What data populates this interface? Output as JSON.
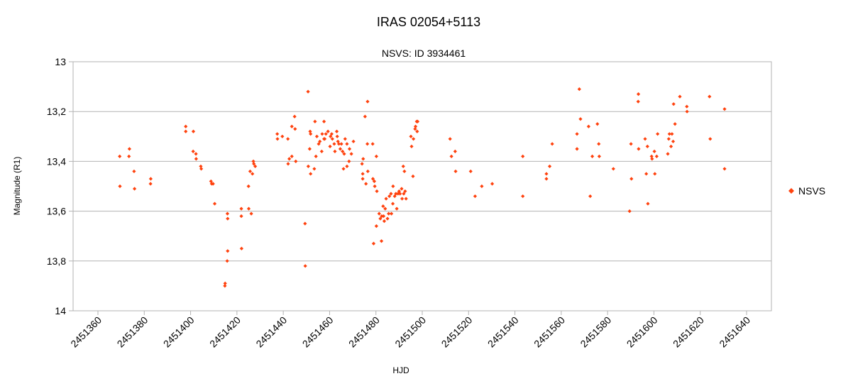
{
  "chart_data": {
    "type": "scatter",
    "title": "IRAS 02054+5113",
    "subtitle": "NSVS: ID 3934461",
    "xlabel": "HJD",
    "ylabel": "Magnitude (R1)",
    "xlim": [
      2451360,
      2451640
    ],
    "ylim": [
      13,
      14
    ],
    "y_inverted": true,
    "x_ticks": [
      "2451360",
      "2451380",
      "2451400",
      "2451420",
      "2451440",
      "2451460",
      "2451480",
      "2451500",
      "2451520",
      "2451540",
      "2451560",
      "2451580",
      "2451600",
      "2451620",
      "2451640"
    ],
    "y_ticks": [
      "13",
      "13,2",
      "13,4",
      "13,6",
      "13,8",
      "14"
    ],
    "grid": "horizontal",
    "legend": "right",
    "colors": {
      "marker": "#ff420e",
      "grid": "#b3b3b3",
      "axis": "#b3b3b3"
    },
    "series": [
      {
        "name": "NSVS",
        "marker": "diamond",
        "points": [
          [
            2451369.4,
            13.38
          ],
          [
            2451369.5,
            13.5
          ],
          [
            2451373.6,
            13.35
          ],
          [
            2451373.4,
            13.38
          ],
          [
            2451375.6,
            13.44
          ],
          [
            2451375.8,
            13.51
          ],
          [
            2451382.8,
            13.47
          ],
          [
            2451382.7,
            13.49
          ],
          [
            2451397.9,
            13.26
          ],
          [
            2451397.9,
            13.28
          ],
          [
            2451401.2,
            13.28
          ],
          [
            2451401.1,
            13.36
          ],
          [
            2451402.3,
            13.37
          ],
          [
            2451402.4,
            13.39
          ],
          [
            2451404.4,
            13.42
          ],
          [
            2451404.6,
            13.43
          ],
          [
            2451408.8,
            13.48
          ],
          [
            2451409.7,
            13.49
          ],
          [
            2451409.1,
            13.49
          ],
          [
            2451410.4,
            13.57
          ],
          [
            2451414.9,
            13.89
          ],
          [
            2451414.8,
            13.9
          ],
          [
            2451415.9,
            13.61
          ],
          [
            2451416.0,
            13.63
          ],
          [
            2451416.0,
            13.76
          ],
          [
            2451415.8,
            13.8
          ],
          [
            2451421.9,
            13.59
          ],
          [
            2451421.9,
            13.62
          ],
          [
            2451422.0,
            13.75
          ],
          [
            2451425.1,
            13.59
          ],
          [
            2451425.0,
            13.5
          ],
          [
            2451425.7,
            13.44
          ],
          [
            2451426.2,
            13.61
          ],
          [
            2451427.1,
            13.4
          ],
          [
            2451427.3,
            13.41
          ],
          [
            2451427.9,
            13.42
          ],
          [
            2451426.7,
            13.45
          ],
          [
            2451437.4,
            13.29
          ],
          [
            2451437.5,
            13.31
          ],
          [
            2451439.6,
            13.3
          ],
          [
            2451442.0,
            13.31
          ],
          [
            2451442.1,
            13.41
          ],
          [
            2451443.7,
            13.26
          ],
          [
            2451444.9,
            13.22
          ],
          [
            2451445.1,
            13.27
          ],
          [
            2451443.7,
            13.38
          ],
          [
            2451445.4,
            13.4
          ],
          [
            2451442.6,
            13.39
          ],
          [
            2451449.4,
            13.65
          ],
          [
            2451449.5,
            13.82
          ],
          [
            2451450.7,
            13.12
          ],
          [
            2451451.6,
            13.28
          ],
          [
            2451451.8,
            13.29
          ],
          [
            2451451.4,
            13.35
          ],
          [
            2451450.8,
            13.42
          ],
          [
            2451451.8,
            13.45
          ],
          [
            2451453.4,
            13.43
          ],
          [
            2451453.7,
            13.24
          ],
          [
            2451454.1,
            13.38
          ],
          [
            2451454.5,
            13.3
          ],
          [
            2451455.3,
            13.33
          ],
          [
            2451455.8,
            13.32
          ],
          [
            2451456.8,
            13.29
          ],
          [
            2451456.6,
            13.36
          ],
          [
            2451457.6,
            13.24
          ],
          [
            2451457.6,
            13.31
          ],
          [
            2451457.9,
            13.31
          ],
          [
            2451458.4,
            13.29
          ],
          [
            2451459.3,
            13.28
          ],
          [
            2451460.2,
            13.34
          ],
          [
            2451460.4,
            13.3
          ],
          [
            2451460.9,
            13.29
          ],
          [
            2451461.2,
            13.31
          ],
          [
            2451462.0,
            13.33
          ],
          [
            2451462.3,
            13.36
          ],
          [
            2451463.1,
            13.28
          ],
          [
            2451463.3,
            13.3
          ],
          [
            2451463.6,
            13.32
          ],
          [
            2451464.0,
            13.33
          ],
          [
            2451464.6,
            13.35
          ],
          [
            2451465.1,
            13.33
          ],
          [
            2451465.6,
            13.36
          ],
          [
            2451466.3,
            13.37
          ],
          [
            2451466.7,
            13.31
          ],
          [
            2451467.5,
            13.33
          ],
          [
            2451466.0,
            13.43
          ],
          [
            2451467.5,
            13.42
          ],
          [
            2451468.4,
            13.4
          ],
          [
            2451468.6,
            13.35
          ],
          [
            2451469.4,
            13.37
          ],
          [
            2451470.3,
            13.32
          ],
          [
            2451474.0,
            13.41
          ],
          [
            2451474.3,
            13.45
          ],
          [
            2451474.3,
            13.47
          ],
          [
            2451474.5,
            13.39
          ],
          [
            2451475.3,
            13.22
          ],
          [
            2451475.7,
            13.49
          ],
          [
            2451476.4,
            13.16
          ],
          [
            2451476.3,
            13.33
          ],
          [
            2451476.5,
            13.44
          ],
          [
            2451478.6,
            13.33
          ],
          [
            2451478.7,
            13.47
          ],
          [
            2451479.0,
            13.73
          ],
          [
            2451479.3,
            13.48
          ],
          [
            2451479.5,
            13.5
          ],
          [
            2451480.2,
            13.38
          ],
          [
            2451480.2,
            13.66
          ],
          [
            2451480.4,
            13.52
          ],
          [
            2451481.4,
            13.61
          ],
          [
            2451481.9,
            13.63
          ],
          [
            2451482.5,
            13.62
          ],
          [
            2451482.4,
            13.72
          ],
          [
            2451483.1,
            13.58
          ],
          [
            2451483.3,
            13.62
          ],
          [
            2451483.6,
            13.64
          ],
          [
            2451484.0,
            13.59
          ],
          [
            2451484.4,
            13.55
          ],
          [
            2451485.0,
            13.63
          ],
          [
            2451485.5,
            13.61
          ],
          [
            2451485.8,
            13.54
          ],
          [
            2451486.5,
            13.53
          ],
          [
            2451486.7,
            13.61
          ],
          [
            2451487.4,
            13.5
          ],
          [
            2451487.3,
            13.57
          ],
          [
            2451488.1,
            13.54
          ],
          [
            2451488.6,
            13.53
          ],
          [
            2451489.0,
            13.59
          ],
          [
            2451489.5,
            13.53
          ],
          [
            2451490.0,
            13.52
          ],
          [
            2451490.4,
            13.53
          ],
          [
            2451491.1,
            13.51
          ],
          [
            2451491.3,
            13.55
          ],
          [
            2451491.8,
            13.42
          ],
          [
            2451492.0,
            13.53
          ],
          [
            2451492.3,
            13.44
          ],
          [
            2451492.6,
            13.52
          ],
          [
            2451493.0,
            13.55
          ],
          [
            2451495.1,
            13.3
          ],
          [
            2451495.4,
            13.34
          ],
          [
            2451496.0,
            13.46
          ],
          [
            2451496.2,
            13.31
          ],
          [
            2451496.9,
            13.27
          ],
          [
            2451497.1,
            13.26
          ],
          [
            2451497.6,
            13.24
          ],
          [
            2451497.8,
            13.28
          ],
          [
            2451498.0,
            13.24
          ],
          [
            2451512.0,
            13.31
          ],
          [
            2451512.6,
            13.38
          ],
          [
            2451514.2,
            13.36
          ],
          [
            2451514.4,
            13.44
          ],
          [
            2451520.9,
            13.44
          ],
          [
            2451522.8,
            13.54
          ],
          [
            2451525.7,
            13.5
          ],
          [
            2451530.2,
            13.49
          ],
          [
            2451543.4,
            13.54
          ],
          [
            2451543.4,
            13.38
          ],
          [
            2451553.6,
            13.45
          ],
          [
            2451553.6,
            13.47
          ],
          [
            2451555.0,
            13.42
          ],
          [
            2451556.1,
            13.33
          ],
          [
            2451566.8,
            13.29
          ],
          [
            2451566.8,
            13.35
          ],
          [
            2451567.8,
            13.11
          ],
          [
            2451568.3,
            13.23
          ],
          [
            2451571.8,
            13.26
          ],
          [
            2451572.5,
            13.54
          ],
          [
            2451573.4,
            13.38
          ],
          [
            2451575.6,
            13.25
          ],
          [
            2451576.2,
            13.33
          ],
          [
            2451576.4,
            13.38
          ],
          [
            2451582.5,
            13.43
          ],
          [
            2451589.5,
            13.6
          ],
          [
            2451590.1,
            13.33
          ],
          [
            2451590.3,
            13.47
          ],
          [
            2451593.3,
            13.13
          ],
          [
            2451593.2,
            13.16
          ],
          [
            2451593.4,
            13.35
          ],
          [
            2451596.2,
            13.31
          ],
          [
            2451596.7,
            13.45
          ],
          [
            2451597.2,
            13.34
          ],
          [
            2451597.4,
            13.57
          ],
          [
            2451599.0,
            13.38
          ],
          [
            2451599.2,
            13.39
          ],
          [
            2451600.2,
            13.36
          ],
          [
            2451600.4,
            13.45
          ],
          [
            2451601.2,
            13.38
          ],
          [
            2451601.6,
            13.29
          ],
          [
            2451606.0,
            13.37
          ],
          [
            2451606.4,
            13.31
          ],
          [
            2451606.7,
            13.29
          ],
          [
            2451607.4,
            13.34
          ],
          [
            2451607.8,
            13.29
          ],
          [
            2451608.3,
            13.32
          ],
          [
            2451608.5,
            13.17
          ],
          [
            2451609.1,
            13.25
          ],
          [
            2451611.2,
            13.14
          ],
          [
            2451614.2,
            13.18
          ],
          [
            2451614.3,
            13.2
          ],
          [
            2451624.0,
            13.14
          ],
          [
            2451624.3,
            13.31
          ],
          [
            2451630.5,
            13.19
          ],
          [
            2451630.5,
            13.43
          ]
        ]
      }
    ]
  }
}
